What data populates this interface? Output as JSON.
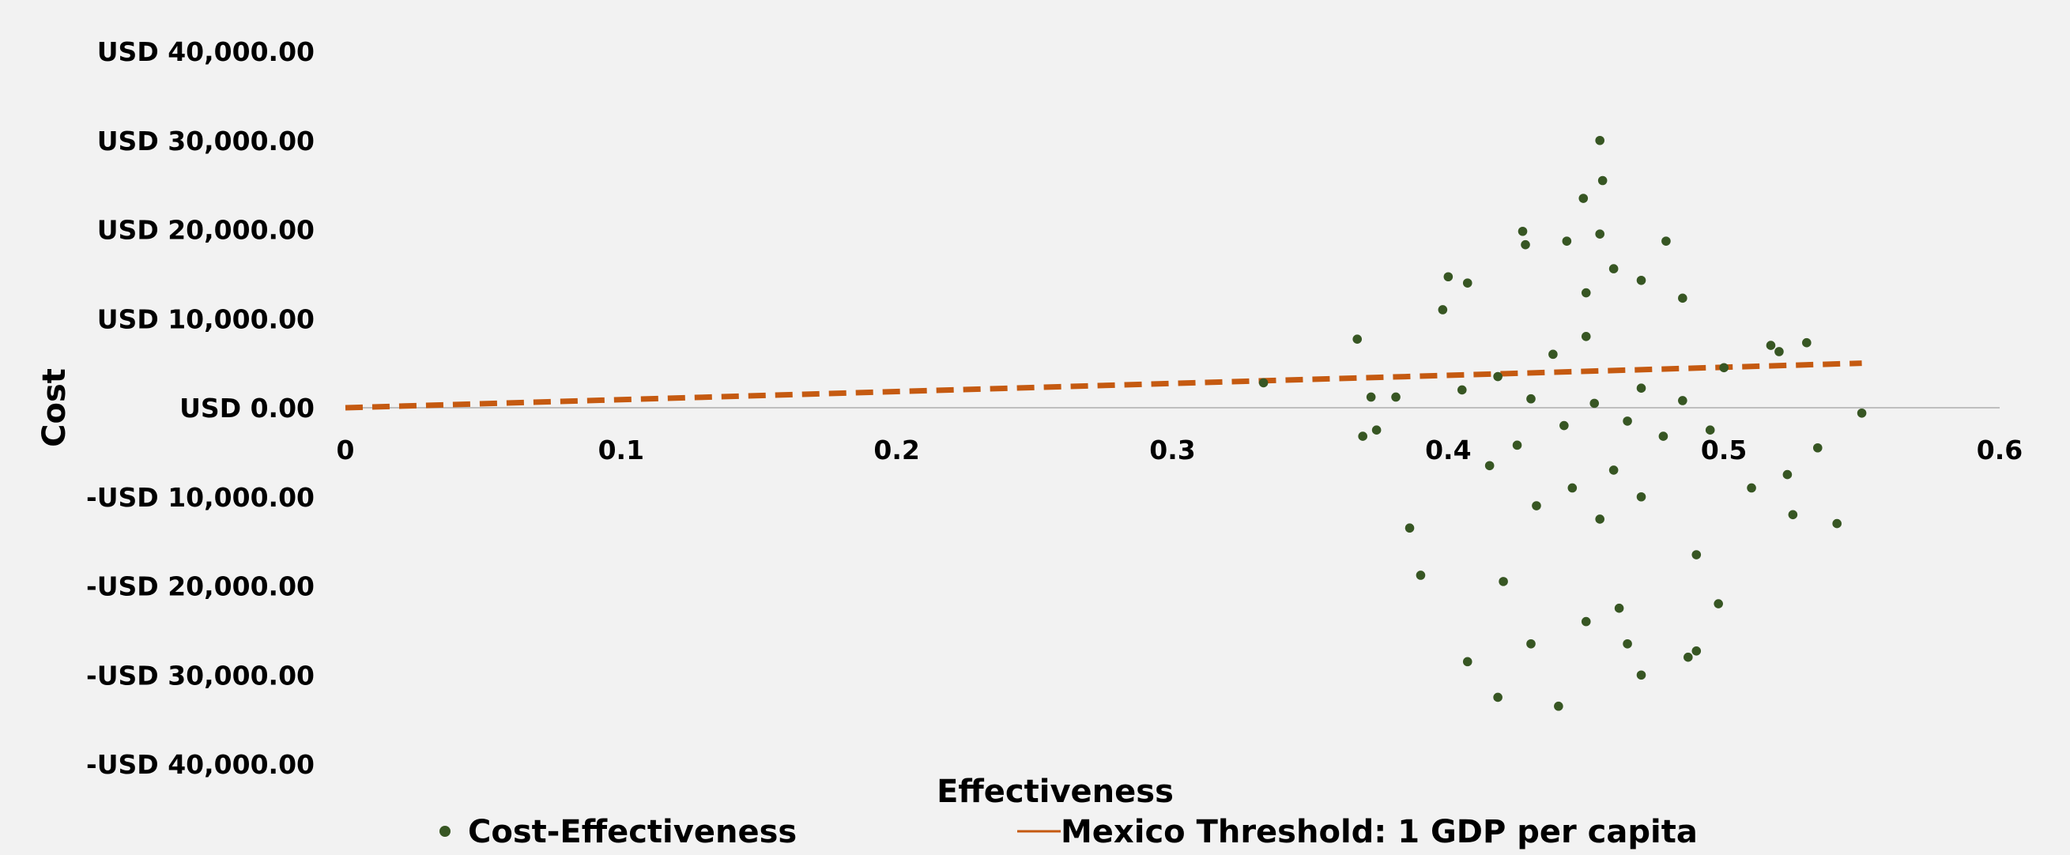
{
  "chart_data": {
    "type": "scatter",
    "xlabel": "Effectiveness",
    "ylabel": "Cost",
    "xlim": [
      0,
      0.6
    ],
    "ylim": [
      -40000,
      40000
    ],
    "x_ticks": [
      0,
      0.1,
      0.2,
      0.3,
      0.4,
      0.5,
      0.6
    ],
    "x_tick_labels": [
      "0",
      "0.1",
      "0.2",
      "0.3",
      "0.4",
      "0.5",
      "0.6"
    ],
    "y_ticks": [
      40000,
      30000,
      20000,
      10000,
      0,
      -10000,
      -20000,
      -30000,
      -40000
    ],
    "y_tick_labels": [
      "USD 40,000.00",
      "USD 30,000.00",
      "USD 20,000.00",
      "USD 10,000.00",
      "USD 0.00",
      "-USD 10,000.00",
      "-USD 20,000.00",
      "-USD 30,000.00",
      "-USD 40,000.00"
    ],
    "grid": false,
    "legend_position": "bottom",
    "series": [
      {
        "name": "Cost-Effectiveness",
        "kind": "scatter",
        "color": "#375623",
        "sample_points": [
          [
            0.455,
            30000
          ],
          [
            0.456,
            25500
          ],
          [
            0.449,
            23500
          ],
          [
            0.455,
            19500
          ],
          [
            0.479,
            18700
          ],
          [
            0.427,
            19800
          ],
          [
            0.428,
            18300
          ],
          [
            0.443,
            18700
          ],
          [
            0.46,
            15600
          ],
          [
            0.47,
            14300
          ],
          [
            0.4,
            14700
          ],
          [
            0.407,
            14000
          ],
          [
            0.45,
            12900
          ],
          [
            0.485,
            12300
          ],
          [
            0.398,
            11000
          ],
          [
            0.367,
            7700
          ],
          [
            0.517,
            7000
          ],
          [
            0.52,
            6300
          ],
          [
            0.53,
            7300
          ],
          [
            0.333,
            2800
          ],
          [
            0.372,
            1200
          ],
          [
            0.381,
            1200
          ],
          [
            0.55,
            -600
          ],
          [
            0.369,
            -3200
          ],
          [
            0.374,
            -2500
          ],
          [
            0.534,
            -4500
          ],
          [
            0.523,
            -7500
          ],
          [
            0.51,
            -9000
          ],
          [
            0.525,
            -12000
          ],
          [
            0.541,
            -13000
          ],
          [
            0.386,
            -13500
          ],
          [
            0.39,
            -18800
          ],
          [
            0.42,
            -19500
          ],
          [
            0.407,
            -28500
          ],
          [
            0.418,
            -32500
          ],
          [
            0.44,
            -33500
          ],
          [
            0.43,
            -26500
          ],
          [
            0.45,
            -24000
          ],
          [
            0.465,
            -26500
          ],
          [
            0.47,
            -30000
          ],
          [
            0.487,
            -28000
          ],
          [
            0.49,
            -27300
          ],
          [
            0.498,
            -22000
          ],
          [
            0.49,
            -16500
          ],
          [
            0.462,
            -22500
          ],
          [
            0.425,
            -4200
          ],
          [
            0.418,
            3500
          ],
          [
            0.43,
            1000
          ],
          [
            0.442,
            -2000
          ],
          [
            0.453,
            500
          ],
          [
            0.465,
            -1500
          ],
          [
            0.47,
            2200
          ],
          [
            0.478,
            -3200
          ],
          [
            0.485,
            800
          ],
          [
            0.495,
            -2500
          ],
          [
            0.438,
            6000
          ],
          [
            0.45,
            8000
          ],
          [
            0.46,
            -7000
          ],
          [
            0.445,
            -9000
          ],
          [
            0.432,
            -11000
          ],
          [
            0.455,
            -12500
          ],
          [
            0.47,
            -10000
          ],
          [
            0.415,
            -6500
          ],
          [
            0.405,
            2000
          ],
          [
            0.5,
            4500
          ]
        ]
      },
      {
        "name": "Mexico Threshold: 1 GDP per capita",
        "kind": "line",
        "color": "#c55a11",
        "x": [
          0,
          0.55
        ],
        "y": [
          0,
          5000
        ]
      }
    ]
  }
}
